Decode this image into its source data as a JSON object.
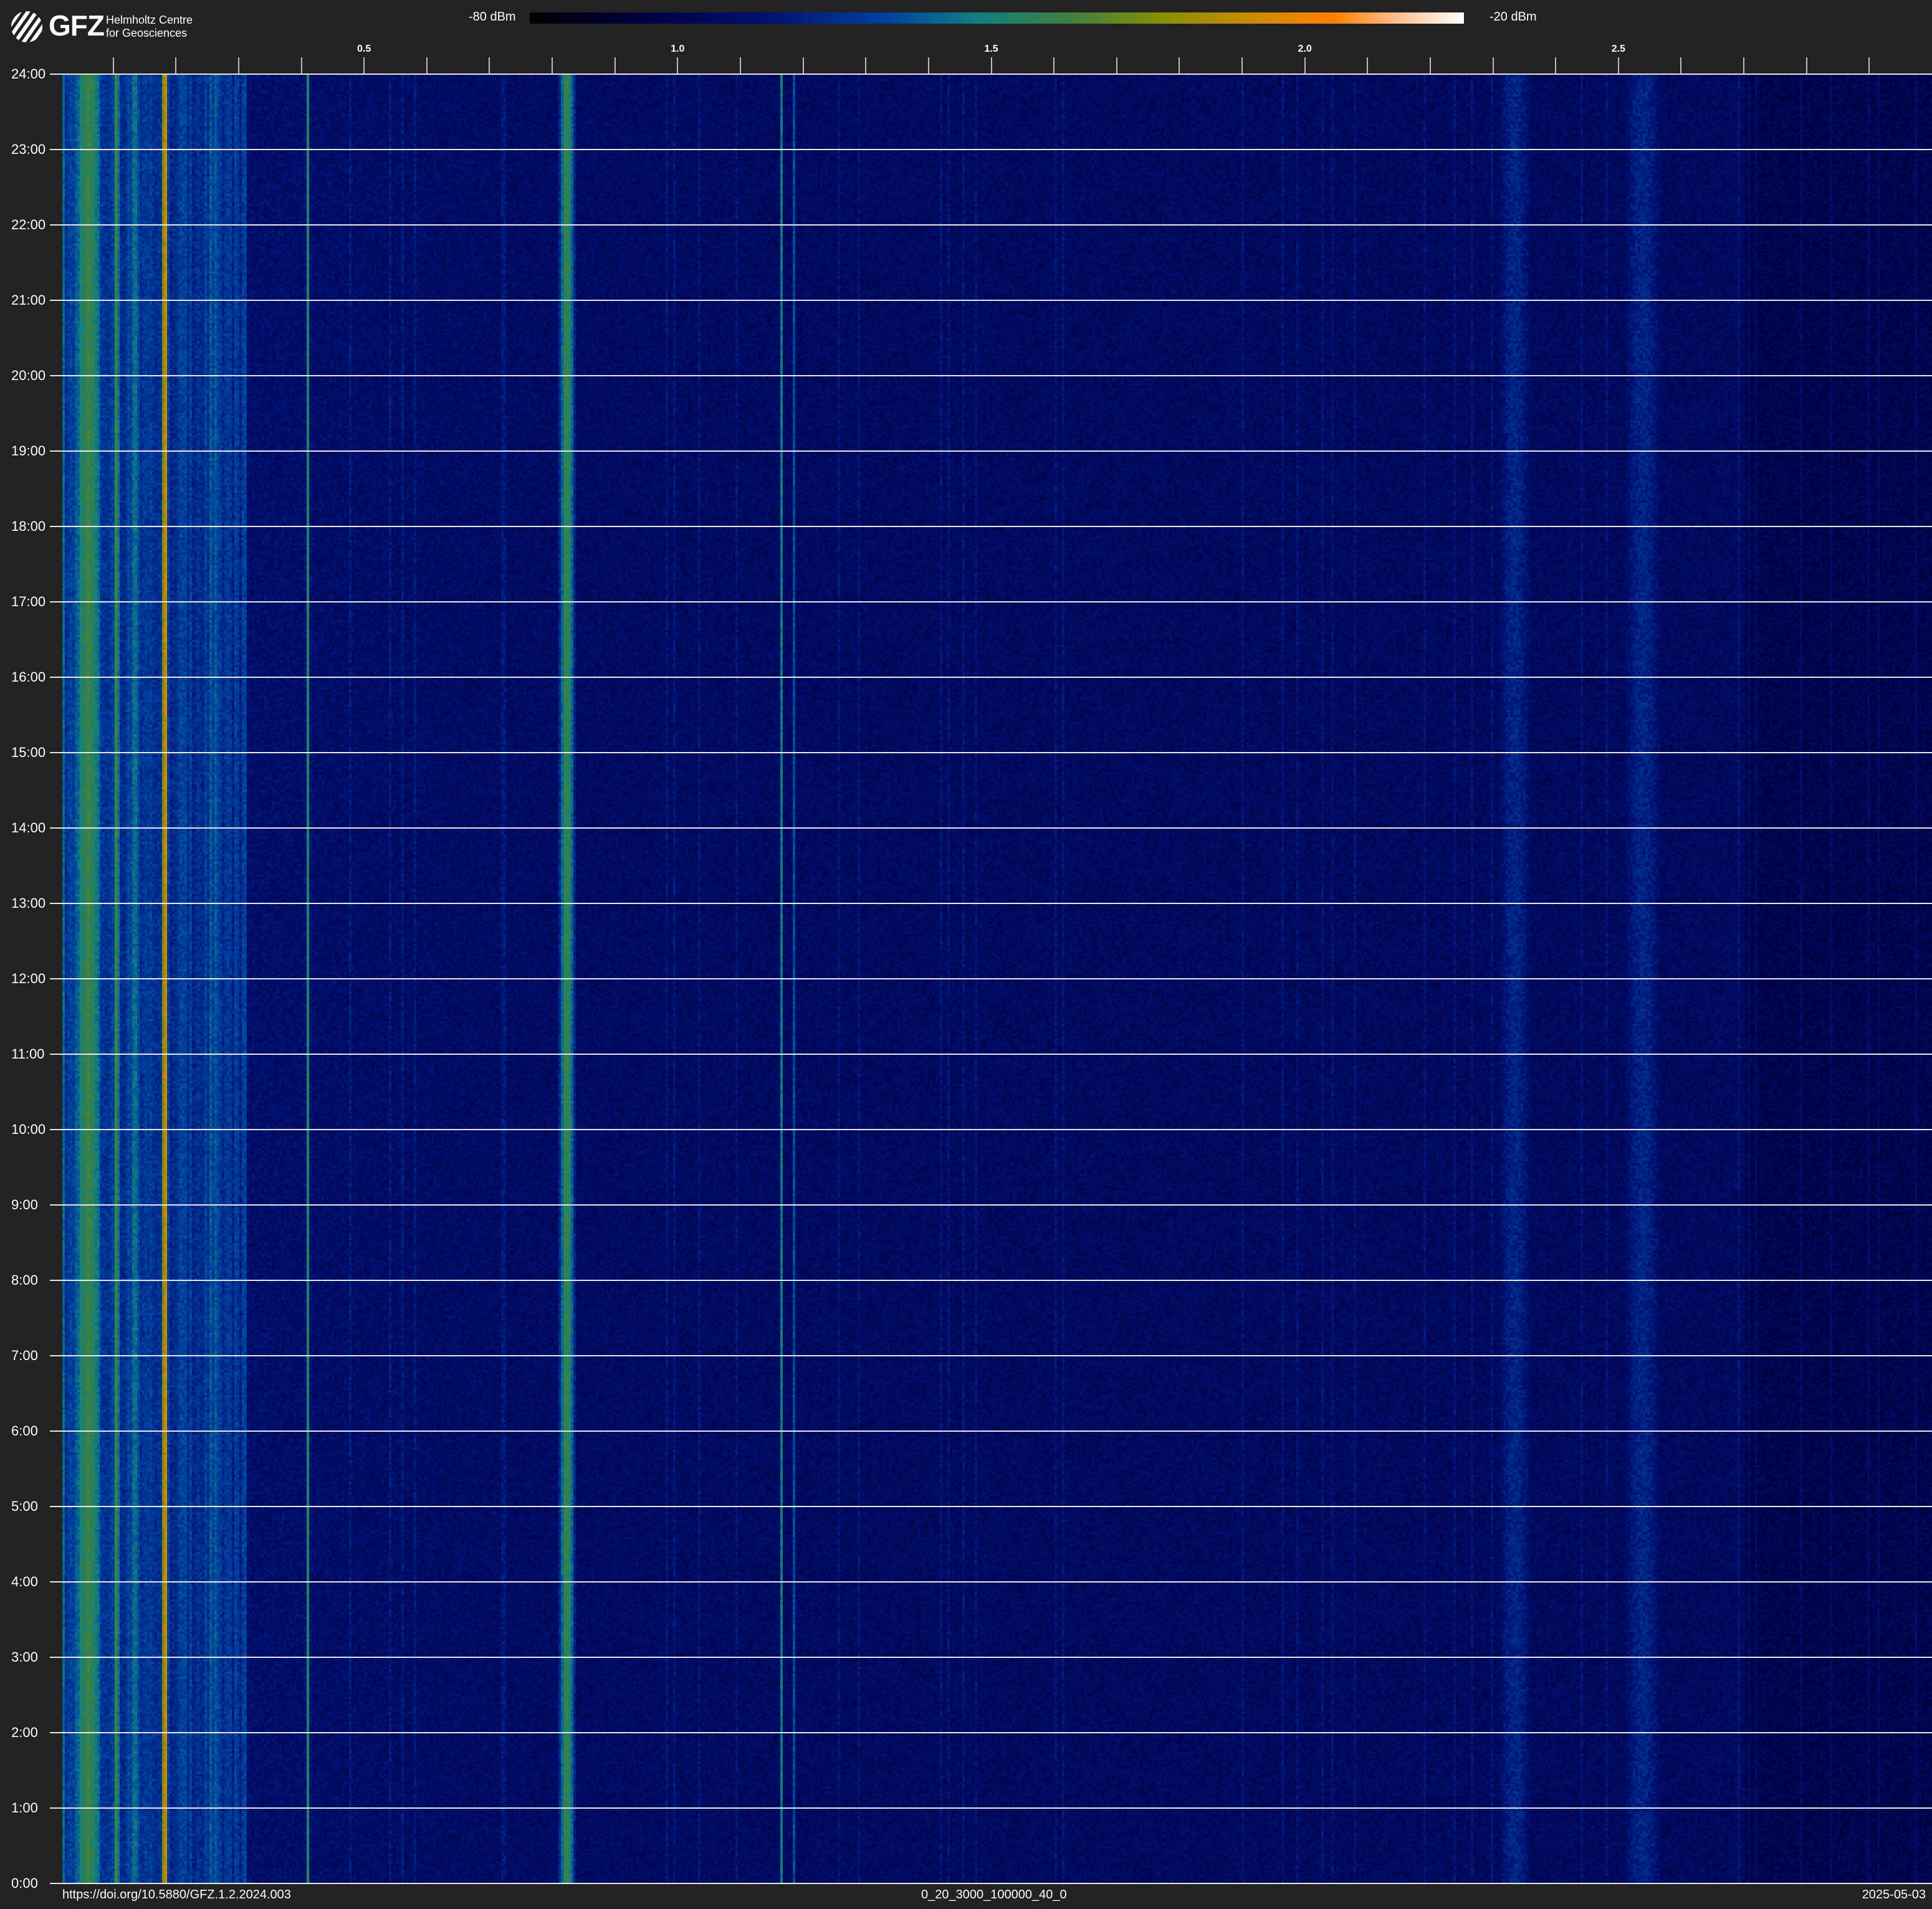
{
  "header": {
    "logo": {
      "mark": "GFZ",
      "text": "GFZ",
      "subtitle_line1": "Helmholtz Centre",
      "subtitle_line2": "for Geosciences"
    },
    "colorbar": {
      "min_label": "-80 dBm",
      "max_label": "-20 dBm"
    }
  },
  "chart_data": {
    "type": "heatmap",
    "x_ticks": [
      {
        "value": 0.5,
        "label": "0.5"
      },
      {
        "value": 1.0,
        "label": "1.0"
      },
      {
        "value": 1.5,
        "label": "1.5"
      },
      {
        "value": 2.0,
        "label": "2.0"
      },
      {
        "value": 2.5,
        "label": "2.5"
      }
    ],
    "x_minor_step": 0.1,
    "xlim": [
      0,
      3.0
    ],
    "y_ticks": [
      "24:00",
      "23:00",
      "22:00",
      "21:00",
      "20:00",
      "19:00",
      "18:00",
      "17:00",
      "16:00",
      "15:00",
      "14:00",
      "13:00",
      "12:00",
      "11:00",
      "10:00",
      "9:00",
      "8:00",
      "7:00",
      "6:00",
      "5:00",
      "4:00",
      "3:00",
      "2:00",
      "1:00",
      "0:00"
    ],
    "ylim": [
      "0:00",
      "24:00"
    ],
    "color_range_dBm": [
      -80,
      -20
    ],
    "colormap": [
      "#000000",
      "#000040",
      "#001070",
      "#0040a0",
      "#108080",
      "#408040",
      "#8a9000",
      "#ff8000",
      "#ffffff"
    ],
    "grid": true
  },
  "footer": {
    "doi": "https://doi.org/10.5880/GFZ.1.2.2024.003",
    "params": "0_20_3000_100000_40_0",
    "date": "2025-05-03"
  }
}
